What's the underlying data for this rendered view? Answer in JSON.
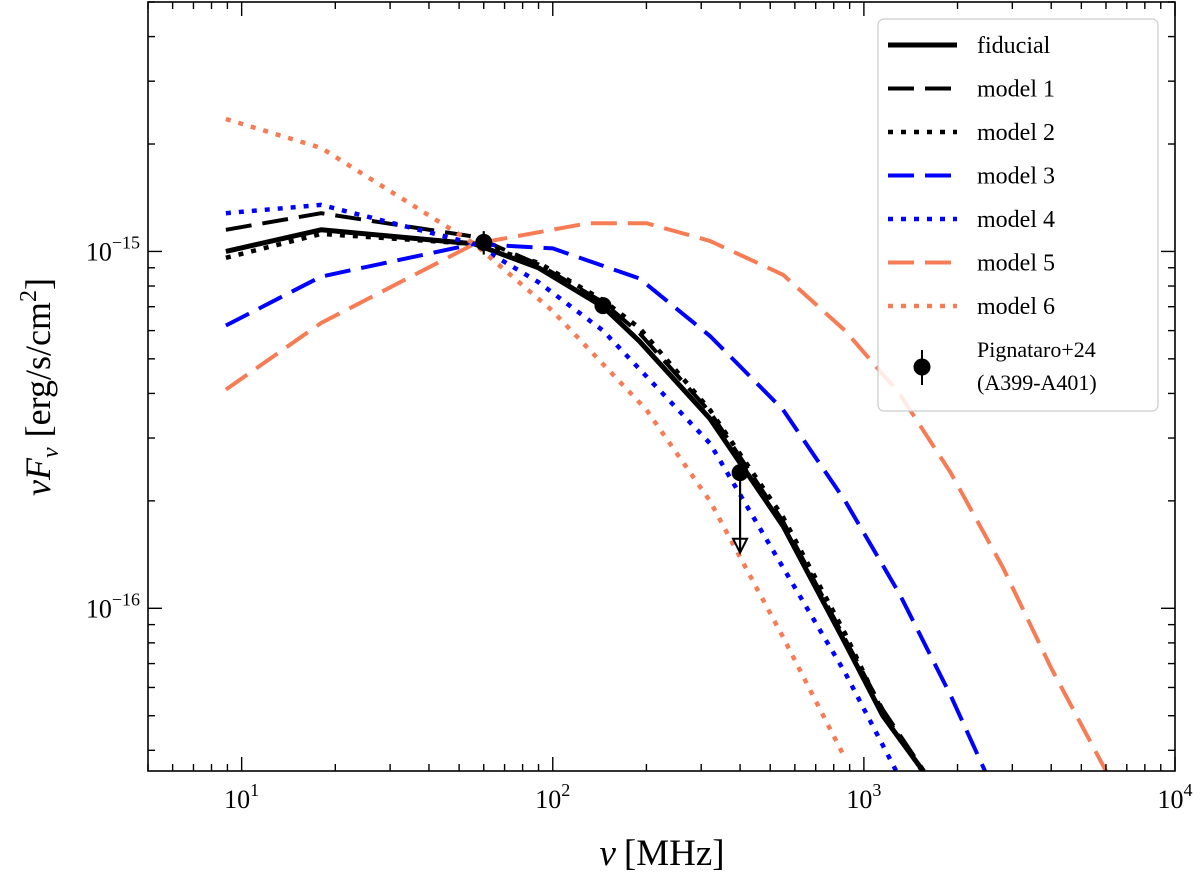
{
  "chart_data": {
    "type": "line",
    "xlabel": {
      "symbol": "ν",
      "unit": "[MHz]"
    },
    "ylabel": {
      "symbol": "νF",
      "sub": "ν",
      "unit": "[erg/s/cm",
      "sup": "2",
      "close": "]"
    },
    "xscale": "log",
    "yscale": "log",
    "xlim": [
      5,
      10000
    ],
    "ylim": [
      3.5e-17,
      5e-15
    ],
    "xticks": [
      {
        "value": 10,
        "base": "10",
        "exp": "1"
      },
      {
        "value": 100,
        "base": "10",
        "exp": "2"
      },
      {
        "value": 1000,
        "base": "10",
        "exp": "3"
      },
      {
        "value": 10000,
        "base": "10",
        "exp": "4"
      }
    ],
    "yticks": [
      {
        "value": 1e-15,
        "base": "10",
        "exp": "−15"
      },
      {
        "value": 1e-16,
        "base": "10",
        "exp": "−16"
      }
    ],
    "grid": false,
    "legend_position": "top-right",
    "series": [
      {
        "name": "fiducial",
        "color": "#000000",
        "style": "solid",
        "x": [
          8.9,
          18,
          56,
          90,
          145,
          190,
          320,
          550,
          870,
          1150,
          1550
        ],
        "y": [
          1e-15,
          1.15e-15,
          1.05e-15,
          9e-16,
          7e-16,
          5.6e-16,
          3.4e-16,
          1.7e-16,
          8e-17,
          5e-17,
          3.5e-17
        ]
      },
      {
        "name": "model 1",
        "color": "#000000",
        "style": "dashed",
        "x": [
          8.9,
          18,
          56,
          90,
          145,
          190,
          320,
          550,
          870,
          1150,
          1560
        ],
        "y": [
          1.15e-15,
          1.28e-15,
          1.1e-15,
          9.2e-16,
          7.2e-16,
          5.9e-16,
          3.55e-16,
          1.75e-16,
          8.2e-17,
          5.2e-17,
          3.5e-17
        ]
      },
      {
        "name": "model 2",
        "color": "#000000",
        "style": "dotted",
        "x": [
          8.9,
          18,
          56,
          90,
          145,
          190,
          320,
          550,
          870,
          1150,
          1540
        ],
        "y": [
          9.6e-16,
          1.12e-15,
          1.05e-15,
          9.3e-16,
          7.3e-16,
          6.1e-16,
          3.6e-16,
          1.8e-16,
          8.5e-17,
          5.1e-17,
          3.5e-17
        ]
      },
      {
        "name": "model 3",
        "color": "#0000ff",
        "style": "dashed",
        "x": [
          8.9,
          18,
          56,
          100,
          190,
          320,
          550,
          870,
          1300,
          1900,
          2450
        ],
        "y": [
          6.2e-16,
          8.5e-16,
          1.05e-15,
          1.02e-15,
          8.4e-16,
          5.8e-16,
          3.6e-16,
          2e-16,
          1.1e-16,
          5.7e-17,
          3.5e-17
        ]
      },
      {
        "name": "model 4",
        "color": "#0000ff",
        "style": "dotted",
        "x": [
          8.9,
          18,
          56,
          90,
          145,
          320,
          550,
          870,
          1270
        ],
        "y": [
          1.28e-15,
          1.35e-15,
          1.05e-15,
          8.2e-16,
          6e-16,
          2.9e-16,
          1.3e-16,
          6.6e-17,
          3.5e-17
        ]
      },
      {
        "name": "model 5",
        "color": "#f57c55",
        "style": "dashed",
        "x": [
          8.9,
          18,
          56,
          130,
          200,
          320,
          550,
          870,
          1300,
          1900,
          2800,
          4000,
          6000
        ],
        "y": [
          4.1e-16,
          6.3e-16,
          1.05e-15,
          1.2e-15,
          1.2e-15,
          1.07e-15,
          8.6e-16,
          6e-16,
          4e-16,
          2.4e-16,
          1.3e-16,
          6.8e-17,
          3.5e-17
        ]
      },
      {
        "name": "model 6",
        "color": "#f57c55",
        "style": "dotted",
        "x": [
          8.9,
          18,
          56,
          100,
          200,
          320,
          550,
          870
        ],
        "y": [
          2.35e-15,
          1.95e-15,
          1.05e-15,
          6.8e-16,
          3.6e-16,
          2e-16,
          8.3e-17,
          3.8e-17
        ]
      }
    ],
    "observations": {
      "name": "Pignataro+24",
      "name_line2": "(A399-A401)",
      "color": "#000000",
      "points": [
        {
          "x": 60,
          "y": 1.06e-15,
          "yerr_low": 8e-17,
          "yerr_high": 8e-17,
          "upper_limit": false
        },
        {
          "x": 145,
          "y": 7.05e-16,
          "yerr_low": 3.5e-17,
          "yerr_high": 3.5e-17,
          "upper_limit": false
        },
        {
          "x": 400,
          "y": 2.4e-16,
          "upper_limit": true,
          "limit_to": 1.45e-16
        }
      ]
    }
  }
}
